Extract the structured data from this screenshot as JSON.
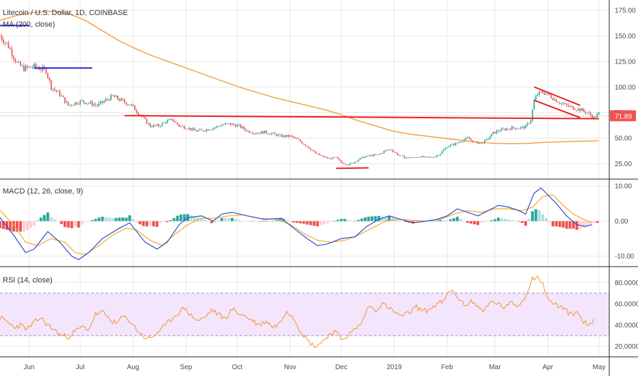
{
  "colors": {
    "up": "#26a69a",
    "down": "#ef5350",
    "ma": "#f0932b",
    "annot_red": "#e91e1e",
    "annot_blue": "#1e1edb",
    "macd_line": "#2a4bd7",
    "macd_signal": "#f5a623",
    "hist_up_strong": "#26a69a",
    "hist_up_weak": "#b2dfdb",
    "hist_down_strong": "#ef5350",
    "hist_down_weak": "#ffcdd2",
    "rsi_line": "#f0932b",
    "rsi_band": "#f3e5fb",
    "rsi_band_line": "#9b7fb5",
    "grid": "#e8e8e8",
    "price_label_bg": "#ef5350"
  },
  "chart_data": [
    {
      "type": "candlestick",
      "title": "Litecoin / U.S. Dollar, 1D, COINBASE",
      "indicator_label": "MA (200, close)",
      "ylim": [
        10,
        185
      ],
      "y_ticks": [
        "175.00",
        "150.00",
        "125.00",
        "100.00",
        "75.00",
        "50.00",
        "25.00"
      ],
      "y_tick_values": [
        175,
        150,
        125,
        100,
        75,
        50,
        25
      ],
      "current_price": "71.89",
      "current_price_value": 71.89,
      "x_labels": [
        "Jun",
        "Jul",
        "Aug",
        "Sep",
        "Oct",
        "Nov",
        "Dec",
        "2019",
        "Feb",
        "Mar",
        "Apr",
        "May"
      ],
      "x_label_days": [
        17,
        47,
        78,
        109,
        139,
        170,
        200,
        231,
        262,
        290,
        321,
        351
      ],
      "day_range": [
        0,
        357
      ],
      "price_path": [
        [
          0,
          150
        ],
        [
          5,
          140
        ],
        [
          10,
          123
        ],
        [
          14,
          118
        ],
        [
          20,
          120
        ],
        [
          27,
          116
        ],
        [
          30,
          100
        ],
        [
          35,
          93
        ],
        [
          40,
          82
        ],
        [
          45,
          85
        ],
        [
          48,
          86
        ],
        [
          53,
          84
        ],
        [
          57,
          82
        ],
        [
          62,
          87
        ],
        [
          66,
          91
        ],
        [
          72,
          86
        ],
        [
          77,
          82
        ],
        [
          82,
          73
        ],
        [
          88,
          62
        ],
        [
          93,
          62
        ],
        [
          97,
          66
        ],
        [
          101,
          68
        ],
        [
          105,
          62
        ],
        [
          110,
          60
        ],
        [
          115,
          57
        ],
        [
          120,
          58
        ],
        [
          125,
          60
        ],
        [
          130,
          63
        ],
        [
          134,
          64
        ],
        [
          140,
          62
        ],
        [
          145,
          57
        ],
        [
          150,
          55
        ],
        [
          155,
          56
        ],
        [
          160,
          54
        ],
        [
          165,
          52
        ],
        [
          170,
          52
        ],
        [
          175,
          48
        ],
        [
          180,
          42
        ],
        [
          185,
          35
        ],
        [
          189,
          32
        ],
        [
          193,
          30
        ],
        [
          197,
          31
        ],
        [
          200,
          26
        ],
        [
          204,
          24
        ],
        [
          208,
          27
        ],
        [
          212,
          31
        ],
        [
          217,
          33
        ],
        [
          222,
          34
        ],
        [
          226,
          38
        ],
        [
          229,
          39
        ],
        [
          233,
          34
        ],
        [
          237,
          31
        ],
        [
          242,
          31
        ],
        [
          246,
          32
        ],
        [
          251,
          31
        ],
        [
          255,
          32
        ],
        [
          258,
          35
        ],
        [
          262,
          42
        ],
        [
          266,
          44
        ],
        [
          270,
          47
        ],
        [
          274,
          50
        ],
        [
          278,
          46
        ],
        [
          282,
          45
        ],
        [
          285,
          48
        ],
        [
          289,
          55
        ],
        [
          293,
          58
        ],
        [
          297,
          59
        ],
        [
          300,
          60
        ],
        [
          304,
          60
        ],
        [
          308,
          61
        ],
        [
          311,
          68
        ],
        [
          313,
          87
        ],
        [
          315,
          93
        ],
        [
          318,
          95
        ],
        [
          321,
          93
        ],
        [
          325,
          88
        ],
        [
          330,
          83
        ],
        [
          335,
          80
        ],
        [
          340,
          78
        ],
        [
          345,
          74
        ],
        [
          348,
          70
        ],
        [
          351,
          74
        ]
      ],
      "ma_path": [
        [
          0,
          165
        ],
        [
          10,
          170
        ],
        [
          20,
          173
        ],
        [
          30,
          174
        ],
        [
          40,
          172
        ],
        [
          50,
          165
        ],
        [
          60,
          155
        ],
        [
          70,
          145
        ],
        [
          80,
          137
        ],
        [
          90,
          130
        ],
        [
          100,
          124
        ],
        [
          110,
          118
        ],
        [
          120,
          112
        ],
        [
          130,
          106
        ],
        [
          140,
          100
        ],
        [
          150,
          95
        ],
        [
          160,
          90
        ],
        [
          170,
          86
        ],
        [
          180,
          82
        ],
        [
          190,
          78
        ],
        [
          200,
          73
        ],
        [
          210,
          67
        ],
        [
          220,
          62
        ],
        [
          230,
          57
        ],
        [
          240,
          54
        ],
        [
          250,
          52
        ],
        [
          260,
          50
        ],
        [
          270,
          48
        ],
        [
          280,
          46
        ],
        [
          290,
          45
        ],
        [
          300,
          44.5
        ],
        [
          310,
          45
        ],
        [
          320,
          46
        ],
        [
          330,
          46.5
        ],
        [
          340,
          47
        ],
        [
          351,
          47.5
        ]
      ],
      "annotations": [
        {
          "kind": "line",
          "color": "red",
          "from": [
            73,
            72
          ],
          "to": [
            351,
            69
          ]
        },
        {
          "kind": "line",
          "color": "red",
          "from": [
            197,
            20.5
          ],
          "to": [
            216,
            21
          ]
        },
        {
          "kind": "line",
          "color": "red",
          "from": [
            313,
            100
          ],
          "to": [
            340,
            82
          ]
        },
        {
          "kind": "line",
          "color": "red",
          "from": [
            313,
            87
          ],
          "to": [
            340,
            70
          ]
        },
        {
          "kind": "line",
          "color": "blue",
          "from": [
            0,
            160
          ],
          "to": [
            17,
            160
          ]
        },
        {
          "kind": "line",
          "color": "blue",
          "from": [
            20,
            118.5
          ],
          "to": [
            54,
            118.5
          ]
        }
      ]
    },
    {
      "type": "macd",
      "title": "MACD (12, 26, close, 9)",
      "ylim": [
        -13,
        12
      ],
      "y_ticks": [
        "10.00",
        "0.00",
        "-10.00"
      ],
      "y_tick_values": [
        10,
        0,
        -10
      ],
      "macd_path": [
        [
          0,
          1
        ],
        [
          8,
          -4
        ],
        [
          15,
          -9
        ],
        [
          20,
          -8
        ],
        [
          28,
          -3
        ],
        [
          35,
          -6
        ],
        [
          42,
          -10
        ],
        [
          46,
          -11
        ],
        [
          52,
          -9
        ],
        [
          60,
          -5
        ],
        [
          70,
          -2
        ],
        [
          76,
          -0.5
        ],
        [
          85,
          -6
        ],
        [
          92,
          -8
        ],
        [
          98,
          -6
        ],
        [
          105,
          -1
        ],
        [
          110,
          1
        ],
        [
          118,
          1.5
        ],
        [
          125,
          0
        ],
        [
          130,
          2
        ],
        [
          136,
          2.5
        ],
        [
          145,
          1.5
        ],
        [
          155,
          0.5
        ],
        [
          165,
          0.8
        ],
        [
          172,
          -2
        ],
        [
          180,
          -5
        ],
        [
          186,
          -7
        ],
        [
          192,
          -6.5
        ],
        [
          200,
          -5
        ],
        [
          208,
          -4.5
        ],
        [
          215,
          -1.5
        ],
        [
          222,
          0.5
        ],
        [
          228,
          1.5
        ],
        [
          235,
          0.5
        ],
        [
          242,
          -0.5
        ],
        [
          250,
          0
        ],
        [
          256,
          0.5
        ],
        [
          262,
          1.5
        ],
        [
          268,
          3.5
        ],
        [
          274,
          2.5
        ],
        [
          280,
          1.5
        ],
        [
          286,
          3
        ],
        [
          292,
          4.5
        ],
        [
          298,
          4
        ],
        [
          304,
          3
        ],
        [
          308,
          2
        ],
        [
          313,
          8
        ],
        [
          317,
          9.5
        ],
        [
          320,
          8
        ],
        [
          326,
          5
        ],
        [
          332,
          1.5
        ],
        [
          338,
          -1
        ],
        [
          343,
          -1.5
        ],
        [
          347,
          -1
        ]
      ],
      "signal_path": [
        [
          0,
          3
        ],
        [
          8,
          -1
        ],
        [
          15,
          -6
        ],
        [
          22,
          -7
        ],
        [
          30,
          -5
        ],
        [
          38,
          -6
        ],
        [
          44,
          -9
        ],
        [
          50,
          -9.5
        ],
        [
          58,
          -7
        ],
        [
          66,
          -4
        ],
        [
          74,
          -2
        ],
        [
          80,
          -2.5
        ],
        [
          88,
          -5.5
        ],
        [
          95,
          -7
        ],
        [
          102,
          -4
        ],
        [
          110,
          -1
        ],
        [
          118,
          0.8
        ],
        [
          126,
          0.8
        ],
        [
          134,
          1.5
        ],
        [
          142,
          1.8
        ],
        [
          152,
          0.8
        ],
        [
          162,
          0.5
        ],
        [
          170,
          -1
        ],
        [
          178,
          -3.5
        ],
        [
          186,
          -5.5
        ],
        [
          194,
          -6
        ],
        [
          202,
          -5.5
        ],
        [
          210,
          -4
        ],
        [
          218,
          -2
        ],
        [
          226,
          0
        ],
        [
          234,
          0.5
        ],
        [
          242,
          0.2
        ],
        [
          250,
          0
        ],
        [
          258,
          0.5
        ],
        [
          266,
          2
        ],
        [
          274,
          3
        ],
        [
          282,
          2.5
        ],
        [
          290,
          3.5
        ],
        [
          298,
          3.5
        ],
        [
          306,
          3
        ],
        [
          312,
          4
        ],
        [
          318,
          7
        ],
        [
          324,
          7.5
        ],
        [
          330,
          4.5
        ],
        [
          336,
          2
        ],
        [
          342,
          0.5
        ],
        [
          347,
          -0.5
        ]
      ]
    },
    {
      "type": "rsi",
      "title": "RSI (14, close)",
      "ylim": [
        10,
        95
      ],
      "y_ticks": [
        "80.0000",
        "60.0000",
        "40.0000",
        "20.0000"
      ],
      "y_tick_values": [
        80,
        60,
        40,
        20
      ],
      "band": [
        30,
        70
      ],
      "rsi_path": [
        [
          0,
          47
        ],
        [
          4,
          43
        ],
        [
          8,
          38
        ],
        [
          12,
          40
        ],
        [
          16,
          36
        ],
        [
          20,
          42
        ],
        [
          24,
          47
        ],
        [
          28,
          40
        ],
        [
          32,
          35
        ],
        [
          36,
          30
        ],
        [
          40,
          29
        ],
        [
          44,
          34
        ],
        [
          48,
          38
        ],
        [
          52,
          36
        ],
        [
          56,
          50
        ],
        [
          60,
          52
        ],
        [
          64,
          46
        ],
        [
          68,
          41
        ],
        [
          72,
          48
        ],
        [
          76,
          44
        ],
        [
          80,
          36
        ],
        [
          84,
          29
        ],
        [
          88,
          27
        ],
        [
          92,
          33
        ],
        [
          96,
          38
        ],
        [
          100,
          45
        ],
        [
          104,
          51
        ],
        [
          108,
          56
        ],
        [
          112,
          49
        ],
        [
          116,
          44
        ],
        [
          120,
          47
        ],
        [
          124,
          54
        ],
        [
          128,
          50
        ],
        [
          132,
          46
        ],
        [
          136,
          55
        ],
        [
          140,
          51
        ],
        [
          144,
          48
        ],
        [
          148,
          44
        ],
        [
          152,
          40
        ],
        [
          156,
          44
        ],
        [
          160,
          38
        ],
        [
          164,
          42
        ],
        [
          168,
          54
        ],
        [
          172,
          47
        ],
        [
          176,
          35
        ],
        [
          180,
          26
        ],
        [
          184,
          20
        ],
        [
          188,
          23
        ],
        [
          192,
          30
        ],
        [
          196,
          34
        ],
        [
          200,
          27
        ],
        [
          204,
          30
        ],
        [
          208,
          36
        ],
        [
          212,
          42
        ],
        [
          216,
          58
        ],
        [
          220,
          54
        ],
        [
          224,
          60
        ],
        [
          228,
          56
        ],
        [
          232,
          51
        ],
        [
          236,
          48
        ],
        [
          240,
          52
        ],
        [
          244,
          57
        ],
        [
          248,
          53
        ],
        [
          252,
          55
        ],
        [
          256,
          60
        ],
        [
          260,
          62
        ],
        [
          264,
          73
        ],
        [
          268,
          67
        ],
        [
          272,
          58
        ],
        [
          276,
          63
        ],
        [
          280,
          57
        ],
        [
          284,
          54
        ],
        [
          288,
          62
        ],
        [
          292,
          60
        ],
        [
          296,
          56
        ],
        [
          300,
          61
        ],
        [
          304,
          58
        ],
        [
          308,
          68
        ],
        [
          312,
          84
        ],
        [
          315,
          86
        ],
        [
          318,
          78
        ],
        [
          322,
          62
        ],
        [
          326,
          59
        ],
        [
          330,
          56
        ],
        [
          334,
          50
        ],
        [
          338,
          52
        ],
        [
          342,
          44
        ],
        [
          345,
          38
        ],
        [
          348,
          46
        ]
      ]
    }
  ]
}
